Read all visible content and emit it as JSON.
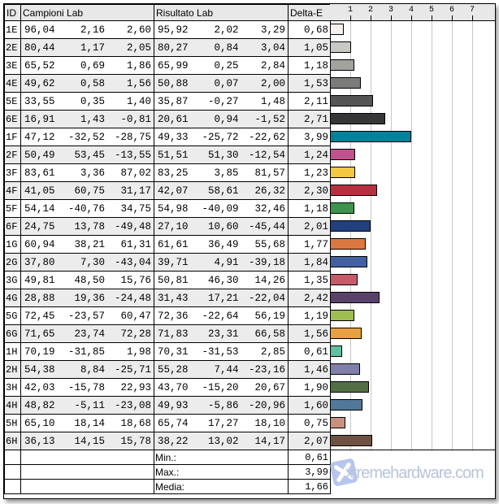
{
  "headers": {
    "id": "ID",
    "campioni": "Campioni Lab",
    "risultato": "Risultato Lab",
    "delta": "Delta-E"
  },
  "rows": [
    {
      "id": "1E",
      "c": [
        "96,04",
        "2,16",
        "2,60"
      ],
      "r": [
        "95,92",
        "2,02",
        "3,29"
      ],
      "de": "0,68"
    },
    {
      "id": "2E",
      "c": [
        "80,44",
        "1,17",
        "2,05"
      ],
      "r": [
        "80,27",
        "0,84",
        "3,04"
      ],
      "de": "1,05"
    },
    {
      "id": "3E",
      "c": [
        "65,52",
        "0,69",
        "1,86"
      ],
      "r": [
        "65,99",
        "0,25",
        "2,84"
      ],
      "de": "1,18"
    },
    {
      "id": "4E",
      "c": [
        "49,62",
        "0,58",
        "1,56"
      ],
      "r": [
        "50,88",
        "0,07",
        "2,00"
      ],
      "de": "1,53"
    },
    {
      "id": "5E",
      "c": [
        "33,55",
        "0,35",
        "1,40"
      ],
      "r": [
        "35,87",
        "-0,27",
        "1,48"
      ],
      "de": "2,11"
    },
    {
      "id": "6E",
      "c": [
        "16,91",
        "1,43",
        "-0,81"
      ],
      "r": [
        "20,61",
        "0,94",
        "-1,52"
      ],
      "de": "2,71"
    },
    {
      "id": "1F",
      "c": [
        "47,12",
        "-32,52",
        "-28,75"
      ],
      "r": [
        "49,33",
        "-25,72",
        "-22,62"
      ],
      "de": "3,99"
    },
    {
      "id": "2F",
      "c": [
        "50,49",
        "53,45",
        "-13,55"
      ],
      "r": [
        "51,51",
        "51,30",
        "-12,54"
      ],
      "de": "1,24"
    },
    {
      "id": "3F",
      "c": [
        "83,61",
        "3,36",
        "87,02"
      ],
      "r": [
        "83,25",
        "3,85",
        "81,57"
      ],
      "de": "1,23"
    },
    {
      "id": "4F",
      "c": [
        "41,05",
        "60,75",
        "31,17"
      ],
      "r": [
        "42,07",
        "58,61",
        "26,32"
      ],
      "de": "2,30"
    },
    {
      "id": "5F",
      "c": [
        "54,14",
        "-40,76",
        "34,75"
      ],
      "r": [
        "54,98",
        "-40,09",
        "32,46"
      ],
      "de": "1,18"
    },
    {
      "id": "6F",
      "c": [
        "24,75",
        "13,78",
        "-49,48"
      ],
      "r": [
        "27,10",
        "10,60",
        "-45,44"
      ],
      "de": "2,01"
    },
    {
      "id": "1G",
      "c": [
        "60,94",
        "38,21",
        "61,31"
      ],
      "r": [
        "61,61",
        "36,49",
        "55,68"
      ],
      "de": "1,77"
    },
    {
      "id": "2G",
      "c": [
        "37,80",
        "7,30",
        "-43,04"
      ],
      "r": [
        "39,71",
        "4,91",
        "-39,18"
      ],
      "de": "1,84"
    },
    {
      "id": "3G",
      "c": [
        "49,81",
        "48,50",
        "15,76"
      ],
      "r": [
        "50,81",
        "46,30",
        "14,26"
      ],
      "de": "1,35"
    },
    {
      "id": "4G",
      "c": [
        "28,88",
        "19,36",
        "-24,48"
      ],
      "r": [
        "31,43",
        "17,21",
        "-22,04"
      ],
      "de": "2,42"
    },
    {
      "id": "5G",
      "c": [
        "72,45",
        "-23,57",
        "60,47"
      ],
      "r": [
        "72,36",
        "-22,64",
        "56,19"
      ],
      "de": "1,19"
    },
    {
      "id": "6G",
      "c": [
        "71,65",
        "23,74",
        "72,28"
      ],
      "r": [
        "71,83",
        "23,31",
        "66,58"
      ],
      "de": "1,56"
    },
    {
      "id": "1H",
      "c": [
        "70,19",
        "-31,85",
        "1,98"
      ],
      "r": [
        "70,31",
        "-31,53",
        "2,85"
      ],
      "de": "0,61"
    },
    {
      "id": "2H",
      "c": [
        "54,38",
        "8,84",
        "-25,71"
      ],
      "r": [
        "55,28",
        "7,44",
        "-23,16"
      ],
      "de": "1,46"
    },
    {
      "id": "3H",
      "c": [
        "42,03",
        "-15,78",
        "22,93"
      ],
      "r": [
        "43,70",
        "-15,20",
        "20,67"
      ],
      "de": "1,90"
    },
    {
      "id": "4H",
      "c": [
        "48,82",
        "-5,11",
        "-23,08"
      ],
      "r": [
        "49,93",
        "-5,86",
        "-20,96"
      ],
      "de": "1,60"
    },
    {
      "id": "5H",
      "c": [
        "65,10",
        "18,14",
        "18,68"
      ],
      "r": [
        "65,74",
        "17,27",
        "18,10"
      ],
      "de": "0,75"
    },
    {
      "id": "6H",
      "c": [
        "36,13",
        "14,15",
        "15,78"
      ],
      "r": [
        "38,22",
        "13,02",
        "14,17"
      ],
      "de": "2,07"
    }
  ],
  "summary": [
    {
      "label": "Min.:",
      "value": "0,61"
    },
    {
      "label": "Max.:",
      "value": "3,99"
    },
    {
      "label": "Media:",
      "value": "1,66"
    }
  ],
  "watermark": "xtremehardware.com",
  "chart_data": {
    "type": "bar",
    "orientation": "horizontal",
    "categories": [
      "1E",
      "2E",
      "3E",
      "4E",
      "5E",
      "6E",
      "1F",
      "2F",
      "3F",
      "4F",
      "5F",
      "6F",
      "1G",
      "2G",
      "3G",
      "4G",
      "5G",
      "6G",
      "1H",
      "2H",
      "3H",
      "4H",
      "5H",
      "6H"
    ],
    "values": [
      0.68,
      1.05,
      1.18,
      1.53,
      2.11,
      2.71,
      3.99,
      1.24,
      1.23,
      2.3,
      1.18,
      2.01,
      1.77,
      1.84,
      1.35,
      2.42,
      1.19,
      1.56,
      0.61,
      1.46,
      1.9,
      1.6,
      0.75,
      2.07
    ],
    "colors": [
      "#f6f0ee",
      "#c8c8c5",
      "#a2a29f",
      "#7b7b79",
      "#555555",
      "#363638",
      "#00829a",
      "#c0528e",
      "#f2c843",
      "#b8303f",
      "#3f9350",
      "#22407f",
      "#db7842",
      "#4361a0",
      "#c65a68",
      "#5a4169",
      "#9fbe52",
      "#e9a042",
      "#5fc0a2",
      "#8180aa",
      "#506f43",
      "#517898",
      "#c8917f",
      "#6f5143"
    ],
    "xticks": [
      1,
      2,
      3,
      4,
      5,
      6,
      7
    ],
    "xlim": [
      0,
      8
    ],
    "grid": true
  }
}
